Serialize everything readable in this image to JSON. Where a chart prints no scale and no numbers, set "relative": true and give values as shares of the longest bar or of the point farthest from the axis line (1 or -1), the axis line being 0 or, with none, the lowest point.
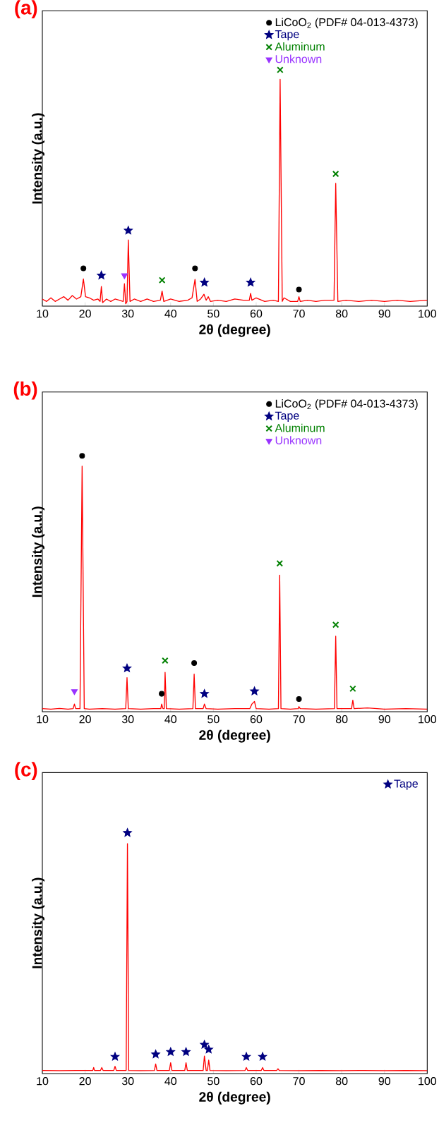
{
  "chart_data": [
    {
      "type": "line",
      "title": "(a)",
      "xlabel": "2θ (degree)",
      "ylabel": "Intensity (a.u.)",
      "xlim": [
        10,
        100
      ],
      "xticks": [
        10,
        20,
        30,
        40,
        50,
        60,
        70,
        80,
        90,
        100
      ],
      "relative": true,
      "legend": "top right",
      "series": [
        {
          "color": "#ff0000",
          "marker": "none",
          "line_style": "solid",
          "x": [
            10,
            11,
            12,
            13,
            14,
            15,
            16,
            17,
            18,
            19,
            19.6,
            20.1,
            21,
            22,
            23,
            23.5,
            23.8,
            24.1,
            25,
            26,
            27,
            28,
            28.9,
            29.2,
            29.5,
            29.8,
            30.1,
            30.5,
            31.5,
            33,
            34.5,
            36,
            37.6,
            38,
            38.4,
            40,
            42,
            44,
            45,
            45.7,
            46.2,
            47,
            47.8,
            48.3,
            48.8,
            49.3,
            51,
            53,
            55,
            57,
            58.4,
            58.7,
            59,
            60,
            62,
            64,
            65.2,
            65.6,
            66.1,
            66.5,
            68,
            69.7,
            70,
            70.3,
            72,
            74,
            76,
            78.2,
            78.6,
            79.1,
            81,
            84,
            87,
            90,
            93,
            96,
            100
          ],
          "values": [
            0.03,
            0.02,
            0.035,
            0.02,
            0.03,
            0.04,
            0.025,
            0.045,
            0.03,
            0.04,
            0.115,
            0.04,
            0.035,
            0.025,
            0.03,
            0.02,
            0.083,
            0.015,
            0.03,
            0.02,
            0.03,
            0.025,
            0.02,
            0.095,
            0.01,
            0.02,
            0.28,
            0.02,
            0.03,
            0.02,
            0.03,
            0.02,
            0.025,
            0.064,
            0.02,
            0.03,
            0.02,
            0.025,
            0.035,
            0.113,
            0.02,
            0.03,
            0.05,
            0.025,
            0.04,
            0.02,
            0.025,
            0.02,
            0.03,
            0.025,
            0.025,
            0.054,
            0.025,
            0.035,
            0.02,
            0.025,
            0.02,
            0.96,
            0.02,
            0.035,
            0.02,
            0.02,
            0.04,
            0.02,
            0.025,
            0.02,
            0.025,
            0.025,
            0.52,
            0.02,
            0.025,
            0.02,
            0.025,
            0.02,
            0.025,
            0.02,
            0.025
          ]
        },
        {
          "type": "scatter",
          "name": "LiCoO$_{2}$ (PDF# 04-013-4373)",
          "color": "#000000",
          "marker": "circle",
          "x": [
            19.6,
            45.7,
            70
          ],
          "values": [
            0.16,
            0.16,
            0.07
          ]
        },
        {
          "type": "scatter",
          "name": "Tape",
          "color": "#000080",
          "marker": "star",
          "x": [
            23.8,
            30.1,
            47.9,
            58.7
          ],
          "values": [
            0.13,
            0.32,
            0.1,
            0.1
          ]
        },
        {
          "type": "scatter",
          "name": "Aluminum",
          "color": "#008000",
          "marker": "cross",
          "x": [
            38,
            65.6,
            78.6
          ],
          "values": [
            0.11,
            1.0,
            0.56
          ]
        },
        {
          "type": "scatter",
          "name": "Unknown",
          "color": "#9933ff",
          "marker": "triangle",
          "x": [
            29.2
          ],
          "values": [
            0.13
          ]
        }
      ]
    },
    {
      "type": "line",
      "title": "(b)",
      "xlabel": "2θ (degree)",
      "ylabel": "Intensity (a.u.)",
      "xlim": [
        10,
        100
      ],
      "xticks": [
        10,
        20,
        30,
        40,
        50,
        60,
        70,
        80,
        90,
        100
      ],
      "relative": true,
      "legend": "top right",
      "series": [
        {
          "color": "#ff0000",
          "marker": "none",
          "line_style": "solid",
          "x": [
            10,
            12,
            14,
            16,
            17.2,
            17.5,
            17.8,
            18.8,
            19.3,
            19.8,
            21,
            24,
            27,
            29.5,
            29.8,
            30.1,
            33,
            36,
            37.7,
            37.9,
            38.2,
            38.5,
            38.7,
            39,
            42,
            45.2,
            45.5,
            45.8,
            47.6,
            47.9,
            48.3,
            51,
            55,
            58.5,
            59,
            59.6,
            60,
            63,
            65.2,
            65.5,
            65.8,
            68,
            69.8,
            70,
            70.3,
            74,
            78.3,
            78.6,
            78.9,
            82.3,
            82.6,
            82.9,
            86,
            90,
            95,
            100
          ],
          "values": [
            0.012,
            0.01,
            0.013,
            0.01,
            0.012,
            0.03,
            0.012,
            0.012,
            0.96,
            0.012,
            0.01,
            0.012,
            0.01,
            0.012,
            0.133,
            0.012,
            0.01,
            0.012,
            0.012,
            0.03,
            0.012,
            0.012,
            0.154,
            0.012,
            0.01,
            0.012,
            0.147,
            0.012,
            0.012,
            0.03,
            0.012,
            0.01,
            0.012,
            0.012,
            0.03,
            0.04,
            0.012,
            0.01,
            0.012,
            0.534,
            0.012,
            0.01,
            0.012,
            0.02,
            0.012,
            0.01,
            0.012,
            0.295,
            0.012,
            0.012,
            0.045,
            0.012,
            0.015,
            0.01,
            0.012,
            0.01
          ]
        },
        {
          "type": "scatter",
          "name": "LiCoO$_{2}$ (PDF# 04-013-4373)",
          "color": "#000000",
          "marker": "circle",
          "x": [
            19.3,
            37.9,
            45.5,
            70
          ],
          "values": [
            1.0,
            0.07,
            0.19,
            0.05
          ]
        },
        {
          "type": "scatter",
          "name": "Tape",
          "color": "#000080",
          "marker": "star",
          "x": [
            29.8,
            47.9,
            59.6
          ],
          "values": [
            0.17,
            0.07,
            0.08
          ]
        },
        {
          "type": "scatter",
          "name": "Aluminum",
          "color": "#008000",
          "marker": "cross",
          "x": [
            38.7,
            65.5,
            78.6,
            82.6
          ],
          "values": [
            0.2,
            0.58,
            0.34,
            0.09
          ]
        },
        {
          "type": "scatter",
          "name": "Unknown",
          "color": "#9933ff",
          "marker": "triangle",
          "x": [
            17.5
          ],
          "values": [
            0.08
          ]
        }
      ]
    },
    {
      "type": "line",
      "title": "(c)",
      "xlabel": "2θ (degree)",
      "ylabel": "Intensity (a.u.)",
      "xlim": [
        10,
        100
      ],
      "xticks": [
        10,
        20,
        30,
        40,
        50,
        60,
        70,
        80,
        90,
        100
      ],
      "relative": true,
      "legend": "top right",
      "series": [
        {
          "color": "#ff0000",
          "marker": "none",
          "line_style": "solid",
          "x": [
            10,
            14,
            18,
            21.8,
            22,
            22.2,
            23.6,
            23.9,
            24.2,
            26.7,
            27,
            27.3,
            29.6,
            29.9,
            30.2,
            33,
            36.2,
            36.5,
            36.8,
            39.7,
            40,
            40.3,
            43.3,
            43.6,
            43.9,
            47.6,
            47.9,
            48.3,
            48.6,
            48.9,
            49.2,
            53,
            57.4,
            57.7,
            58,
            61.2,
            61.5,
            61.8,
            64.8,
            65.1,
            65.4,
            70,
            75,
            80,
            85,
            90,
            95,
            100
          ],
          "values": [
            0.013,
            0.012,
            0.013,
            0.013,
            0.025,
            0.013,
            0.013,
            0.025,
            0.013,
            0.013,
            0.03,
            0.013,
            0.013,
            0.955,
            0.013,
            0.012,
            0.013,
            0.04,
            0.013,
            0.013,
            0.045,
            0.013,
            0.013,
            0.045,
            0.013,
            0.013,
            0.073,
            0.013,
            0.013,
            0.056,
            0.013,
            0.012,
            0.013,
            0.025,
            0.013,
            0.013,
            0.025,
            0.013,
            0.013,
            0.02,
            0.013,
            0.012,
            0.013,
            0.012,
            0.013,
            0.012,
            0.013,
            0.012
          ]
        },
        {
          "type": "scatter",
          "name": "Tape",
          "color": "#000080",
          "marker": "star",
          "x": [
            27,
            29.9,
            36.5,
            40,
            43.6,
            47.9,
            48.9,
            57.7,
            61.5
          ],
          "values": [
            0.07,
            1.0,
            0.08,
            0.09,
            0.09,
            0.12,
            0.1,
            0.07,
            0.07
          ]
        }
      ]
    }
  ]
}
